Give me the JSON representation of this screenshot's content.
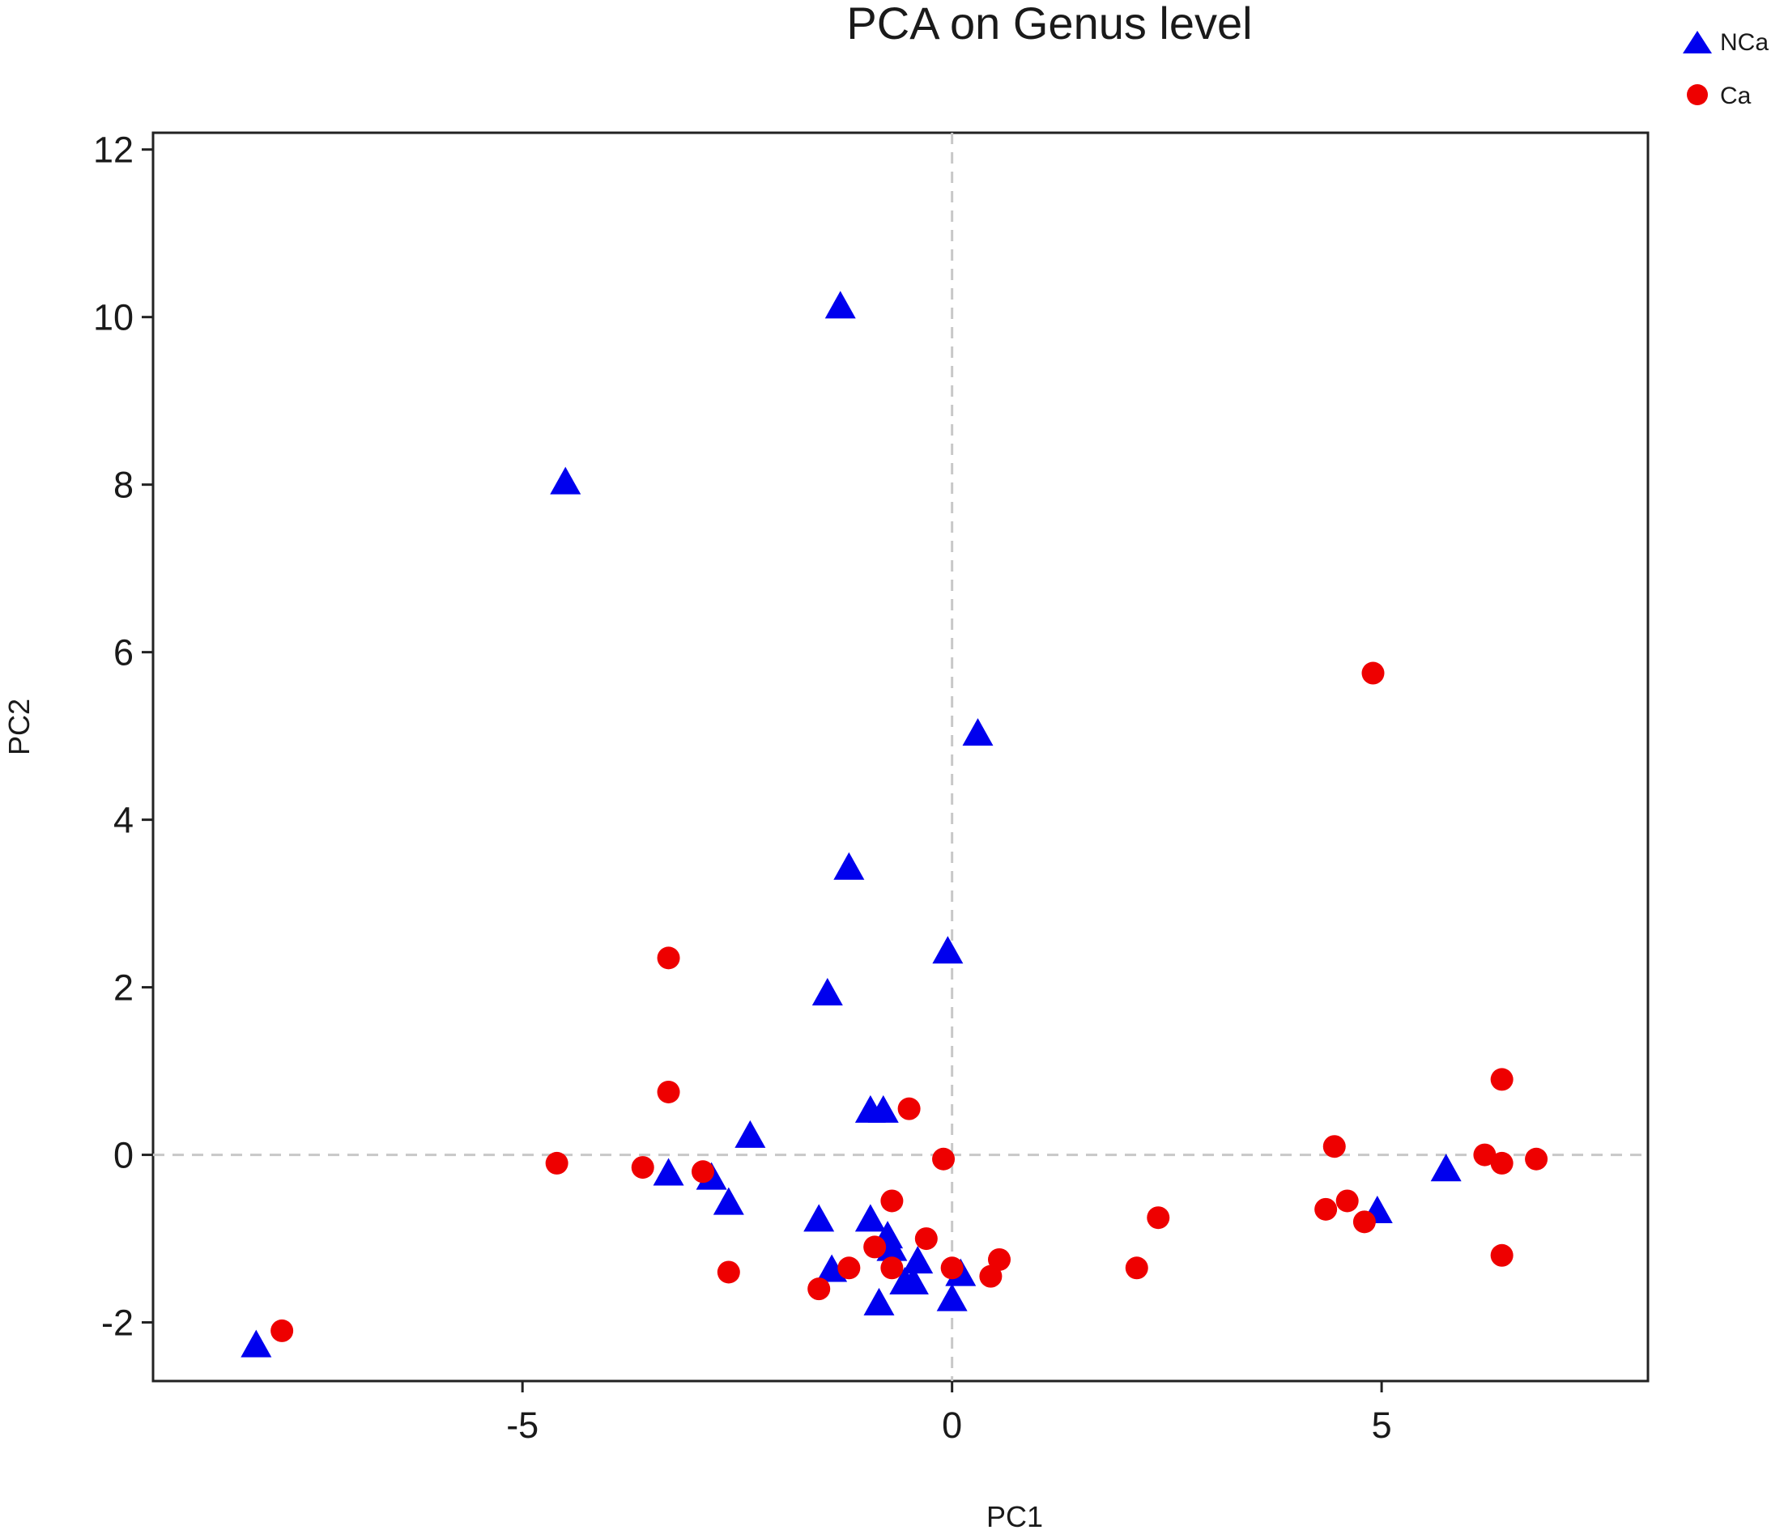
{
  "chart_data": {
    "type": "scatter",
    "title": "PCA on Genus level",
    "xlabel": "PC1",
    "ylabel": "PC2",
    "xlim": [
      -9.3,
      8.1
    ],
    "ylim": [
      -2.7,
      12.2
    ],
    "xticks": [
      -5,
      0,
      5
    ],
    "yticks": [
      -2,
      0,
      2,
      4,
      6,
      8,
      10,
      12
    ],
    "xtick_labels": [
      "-5",
      "0",
      "5"
    ],
    "ytick_labels": [
      "-2",
      "0",
      "2",
      "4",
      "6",
      "8",
      "10",
      "12"
    ],
    "grid": false,
    "reference_lines": {
      "x": 0,
      "y": 0,
      "style": "dashed"
    },
    "legend_position": "top-right",
    "series": [
      {
        "name": "NCa",
        "marker": "triangle",
        "color": "#0000ee",
        "points": [
          [
            -8.1,
            -2.3
          ],
          [
            -4.5,
            8.0
          ],
          [
            -1.3,
            10.1
          ],
          [
            -1.2,
            3.4
          ],
          [
            -1.45,
            1.9
          ],
          [
            0.3,
            5.0
          ],
          [
            -0.05,
            2.4
          ],
          [
            -0.95,
            0.5
          ],
          [
            -0.8,
            0.5
          ],
          [
            -2.35,
            0.2
          ],
          [
            -3.3,
            -0.25
          ],
          [
            -2.8,
            -0.3
          ],
          [
            -2.6,
            -0.6
          ],
          [
            -1.55,
            -0.8
          ],
          [
            -0.95,
            -0.8
          ],
          [
            -0.75,
            -1.0
          ],
          [
            -0.7,
            -1.15
          ],
          [
            -1.4,
            -1.4
          ],
          [
            -0.55,
            -1.55
          ],
          [
            -0.45,
            -1.55
          ],
          [
            -0.4,
            -1.3
          ],
          [
            0.1,
            -1.45
          ],
          [
            0.0,
            -1.75
          ],
          [
            -0.85,
            -1.8
          ],
          [
            5.75,
            -0.2
          ],
          [
            4.95,
            -0.7
          ]
        ]
      },
      {
        "name": "Ca",
        "marker": "circle",
        "color": "#ee0000",
        "points": [
          [
            -7.8,
            -2.1
          ],
          [
            -3.3,
            2.35
          ],
          [
            -3.3,
            0.75
          ],
          [
            -4.6,
            -0.1
          ],
          [
            -3.6,
            -0.15
          ],
          [
            -2.9,
            -0.2
          ],
          [
            -0.5,
            0.55
          ],
          [
            -0.1,
            -0.05
          ],
          [
            -0.7,
            -0.55
          ],
          [
            -0.3,
            -1.0
          ],
          [
            -0.9,
            -1.1
          ],
          [
            -1.2,
            -1.35
          ],
          [
            -0.7,
            -1.35
          ],
          [
            -2.6,
            -1.4
          ],
          [
            -1.55,
            -1.6
          ],
          [
            0.0,
            -1.35
          ],
          [
            0.55,
            -1.25
          ],
          [
            0.45,
            -1.45
          ],
          [
            2.15,
            -1.35
          ],
          [
            2.4,
            -0.75
          ],
          [
            4.45,
            0.1
          ],
          [
            4.35,
            -0.65
          ],
          [
            4.6,
            -0.55
          ],
          [
            4.8,
            -0.8
          ],
          [
            4.9,
            5.75
          ],
          [
            6.2,
            0.0
          ],
          [
            6.4,
            0.9
          ],
          [
            6.4,
            -0.1
          ],
          [
            6.8,
            -0.05
          ],
          [
            6.4,
            -1.2
          ]
        ]
      }
    ]
  }
}
